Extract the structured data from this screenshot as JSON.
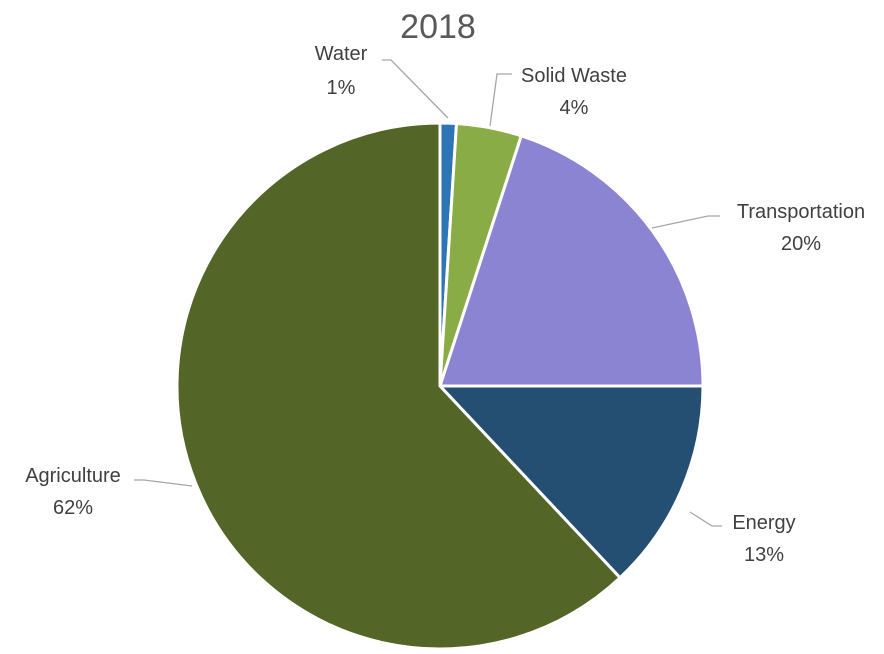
{
  "chart_data": {
    "type": "pie",
    "title": "2018",
    "categories": [
      "Water",
      "Solid Waste",
      "Transportation",
      "Energy",
      "Agriculture"
    ],
    "values": [
      1,
      4,
      20,
      13,
      62
    ],
    "value_labels": [
      "1%",
      "4%",
      "20%",
      "13%",
      "62%"
    ],
    "colors": [
      "#2e75b6",
      "#8aac46",
      "#8b84d3",
      "#254e73",
      "#536527"
    ],
    "legend": "none",
    "start_angle_deg": 0,
    "direction": "clockwise"
  }
}
